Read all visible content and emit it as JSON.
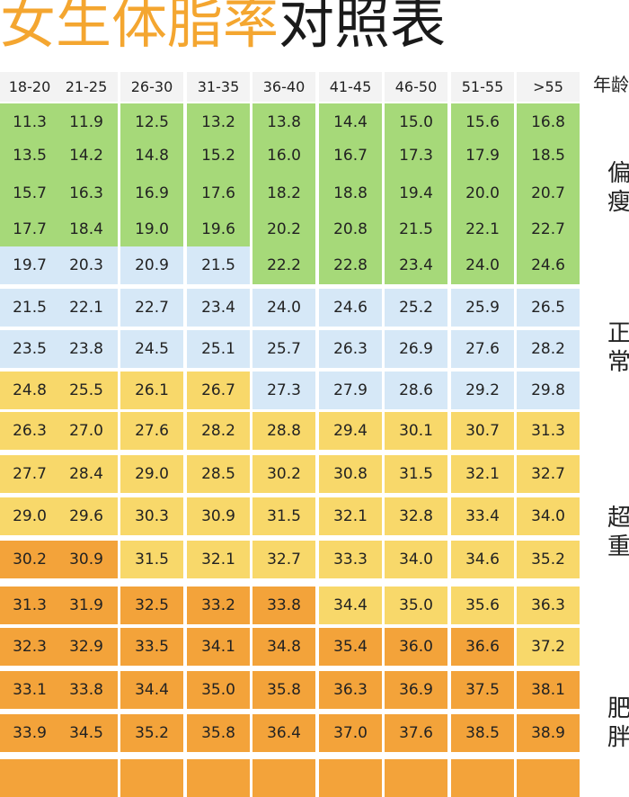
{
  "title": {
    "orange": "女生体脂率",
    "black": "对照表"
  },
  "age_header": "年龄",
  "columns": [
    "18-20",
    "21-25",
    "26-30",
    "31-35",
    "36-40",
    "41-45",
    "46-50",
    "51-55",
    ">55"
  ],
  "colors": {
    "green": "#a6d979",
    "blue": "#d6e8f7",
    "yellow": "#f8d86a",
    "orange": "#f3a33a"
  },
  "rows": [
    {
      "values": [
        "11.3",
        "11.9",
        "12.5",
        "13.2",
        "13.8",
        "14.4",
        "15.0",
        "15.6",
        "16.8"
      ],
      "colors": [
        "g",
        "g",
        "g",
        "g",
        "g",
        "g",
        "g",
        "g",
        "g"
      ]
    },
    {
      "values": [
        "13.5",
        "14.2",
        "14.8",
        "15.2",
        "16.0",
        "16.7",
        "17.3",
        "17.9",
        "18.5"
      ],
      "colors": [
        "g",
        "g",
        "g",
        "g",
        "g",
        "g",
        "g",
        "g",
        "g"
      ]
    },
    {
      "values": [
        "15.7",
        "16.3",
        "16.9",
        "17.6",
        "18.2",
        "18.8",
        "19.4",
        "20.0",
        "20.7"
      ],
      "colors": [
        "g",
        "g",
        "g",
        "g",
        "g",
        "g",
        "g",
        "g",
        "g"
      ]
    },
    {
      "values": [
        "17.7",
        "18.4",
        "19.0",
        "19.6",
        "20.2",
        "20.8",
        "21.5",
        "22.1",
        "22.7"
      ],
      "colors": [
        "g",
        "g",
        "g",
        "g",
        "g",
        "g",
        "g",
        "g",
        "g"
      ]
    },
    {
      "values": [
        "19.7",
        "20.3",
        "20.9",
        "21.5",
        "22.2",
        "22.8",
        "23.4",
        "24.0",
        "24.6"
      ],
      "colors": [
        "b",
        "b",
        "b",
        "b",
        "g",
        "g",
        "g",
        "g",
        "g"
      ]
    },
    {
      "values": [
        "21.5",
        "22.1",
        "22.7",
        "23.4",
        "24.0",
        "24.6",
        "25.2",
        "25.9",
        "26.5"
      ],
      "colors": [
        "b",
        "b",
        "b",
        "b",
        "b",
        "b",
        "b",
        "b",
        "b"
      ]
    },
    {
      "values": [
        "23.5",
        "23.8",
        "24.5",
        "25.1",
        "25.7",
        "26.3",
        "26.9",
        "27.6",
        "28.2"
      ],
      "colors": [
        "b",
        "b",
        "b",
        "b",
        "b",
        "b",
        "b",
        "b",
        "b"
      ]
    },
    {
      "values": [
        "24.8",
        "25.5",
        "26.1",
        "26.7",
        "27.3",
        "27.9",
        "28.6",
        "29.2",
        "29.8"
      ],
      "colors": [
        "y",
        "y",
        "y",
        "y",
        "b",
        "b",
        "b",
        "b",
        "b"
      ]
    },
    {
      "values": [
        "26.3",
        "27.0",
        "27.6",
        "28.2",
        "28.8",
        "29.4",
        "30.1",
        "30.7",
        "31.3"
      ],
      "colors": [
        "y",
        "y",
        "y",
        "y",
        "y",
        "y",
        "y",
        "y",
        "y"
      ]
    },
    {
      "values": [
        "27.7",
        "28.4",
        "29.0",
        "28.5",
        "30.2",
        "30.8",
        "31.5",
        "32.1",
        "32.7"
      ],
      "colors": [
        "y",
        "y",
        "y",
        "y",
        "y",
        "y",
        "y",
        "y",
        "y"
      ]
    },
    {
      "values": [
        "29.0",
        "29.6",
        "30.3",
        "30.9",
        "31.5",
        "32.1",
        "32.8",
        "33.4",
        "34.0"
      ],
      "colors": [
        "y",
        "y",
        "y",
        "y",
        "y",
        "y",
        "y",
        "y",
        "y"
      ]
    },
    {
      "values": [
        "30.2",
        "30.9",
        "31.5",
        "32.1",
        "32.7",
        "33.3",
        "34.0",
        "34.6",
        "35.2"
      ],
      "colors": [
        "o",
        "o",
        "y",
        "y",
        "y",
        "y",
        "y",
        "y",
        "y"
      ]
    },
    {
      "values": [
        "31.3",
        "31.9",
        "32.5",
        "33.2",
        "33.8",
        "34.4",
        "35.0",
        "35.6",
        "36.3"
      ],
      "colors": [
        "o",
        "o",
        "o",
        "o",
        "o",
        "y",
        "y",
        "y",
        "y"
      ]
    },
    {
      "values": [
        "32.3",
        "32.9",
        "33.5",
        "34.1",
        "34.8",
        "35.4",
        "36.0",
        "36.6",
        "37.2"
      ],
      "colors": [
        "o",
        "o",
        "o",
        "o",
        "o",
        "o",
        "o",
        "o",
        "y"
      ]
    },
    {
      "values": [
        "33.1",
        "33.8",
        "34.4",
        "35.0",
        "35.8",
        "36.3",
        "36.9",
        "37.5",
        "38.1"
      ],
      "colors": [
        "o",
        "o",
        "o",
        "o",
        "o",
        "o",
        "o",
        "o",
        "o"
      ]
    },
    {
      "values": [
        "33.9",
        "34.5",
        "35.2",
        "35.8",
        "36.4",
        "37.0",
        "37.6",
        "38.5",
        "38.9"
      ],
      "colors": [
        "o",
        "o",
        "o",
        "o",
        "o",
        "o",
        "o",
        "o",
        "o"
      ]
    },
    {
      "values": [
        "",
        "",
        "",
        "",
        "",
        "",
        "",
        "",
        ""
      ],
      "colors": [
        "o",
        "o",
        "o",
        "o",
        "o",
        "o",
        "o",
        "o",
        "o"
      ]
    }
  ],
  "categories": [
    {
      "label": "偏瘦",
      "color": "#a6d979"
    },
    {
      "label": "正常",
      "color": "#d6e8f7"
    },
    {
      "label": "超重",
      "color": "#f8d86a"
    },
    {
      "label": "肥胖",
      "color": "#f3a33a"
    }
  ]
}
